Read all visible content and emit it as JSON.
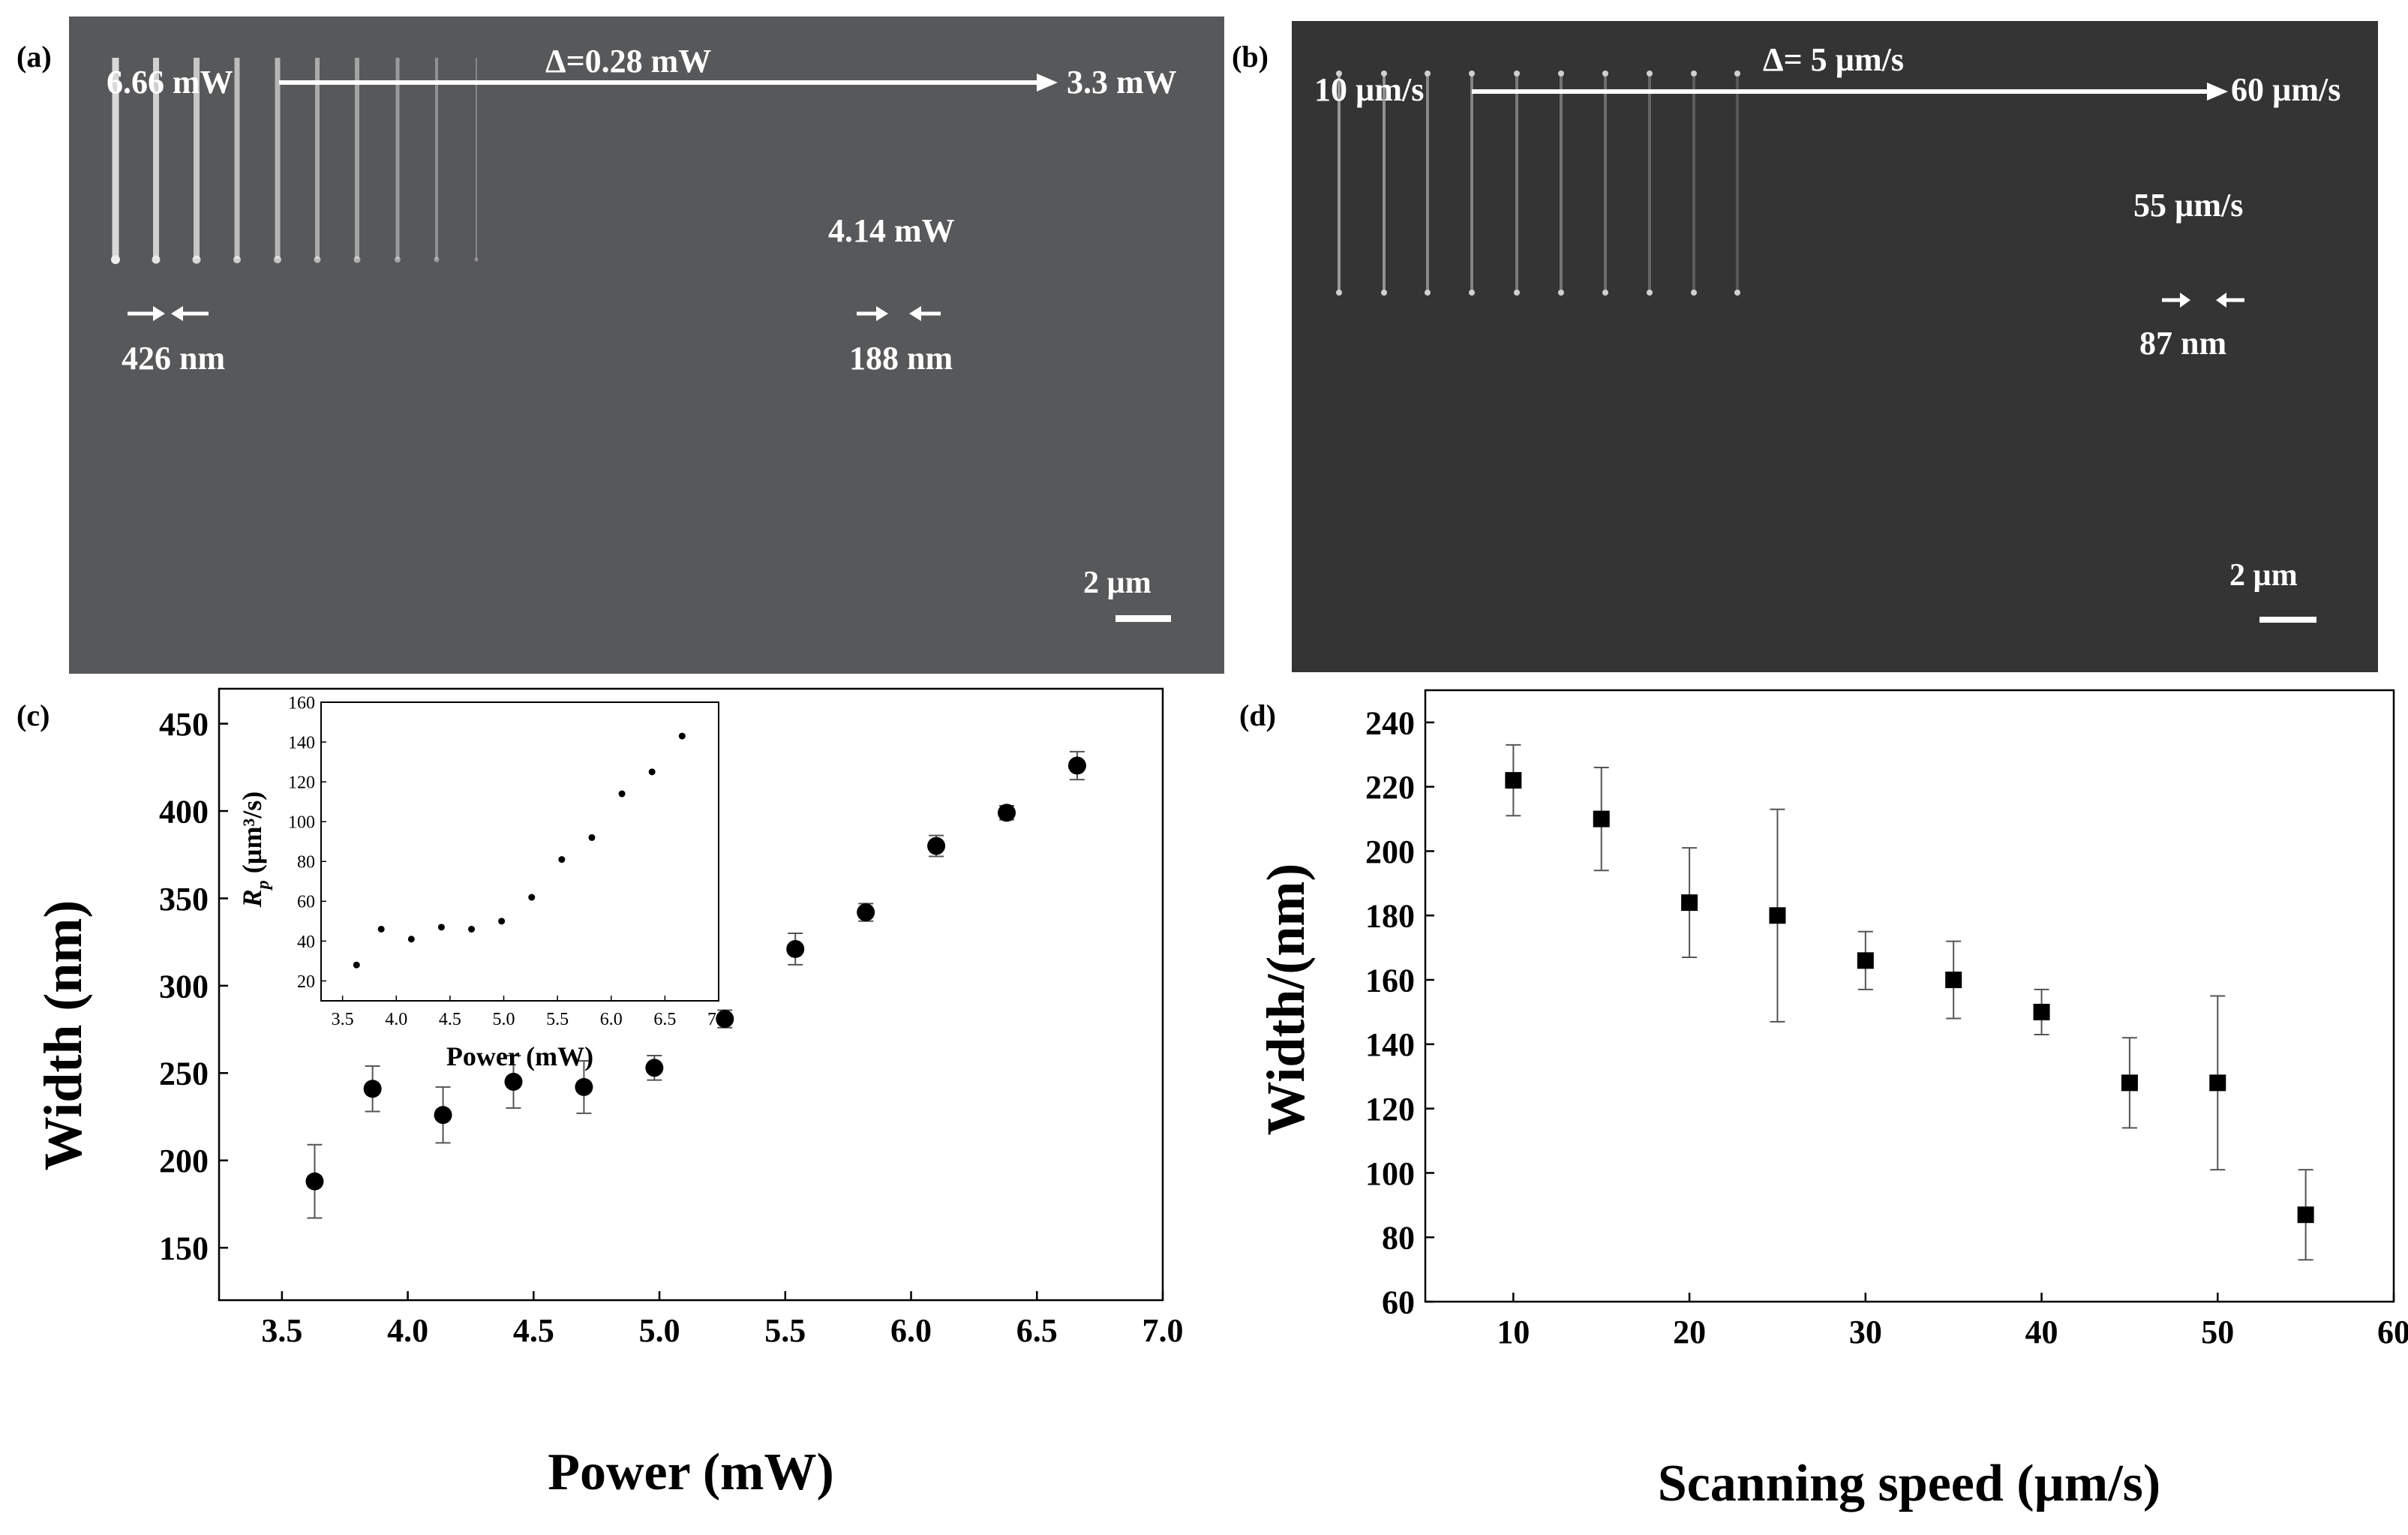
{
  "colors": {
    "sem_a_bg": "#57585a",
    "sem_b_bg": "#343434",
    "line_a": "#d9d9d9",
    "line_b": "#a9a9a9",
    "marker": "#000000",
    "errorbar": "#555555"
  },
  "panel_a": {
    "label": "(a)",
    "left_power": "6.66 mW",
    "delta": "Δ=0.28 mW",
    "right_power": "3.3 mW",
    "mid_annotation": "4.14 mW",
    "width_left": "426 nm",
    "width_right": "188 nm",
    "scale": "2 µm"
  },
  "panel_b": {
    "label": "(b)",
    "left_speed": "10 µm/s",
    "delta": "Δ= 5 µm/s",
    "right_speed": "60 µm/s",
    "mid_annotation": "55 µm/s",
    "width_right": "87 nm",
    "scale": "2 µm"
  },
  "panel_c": {
    "label": "(c)"
  },
  "panel_d": {
    "label": "(d)"
  },
  "chart_data": [
    {
      "id": "c-main",
      "type": "scatter",
      "title": "",
      "xlabel": "Power (mW)",
      "ylabel": "Width (nm)",
      "xlim": [
        3.25,
        7.0
      ],
      "ylim": [
        120,
        470
      ],
      "xticks": [
        3.5,
        4.0,
        4.5,
        5.0,
        5.5,
        6.0,
        6.5,
        7.0
      ],
      "xtick_labels": [
        "3.5",
        "4.0",
        "4.5",
        "5.0",
        "5.5",
        "6.0",
        "6.5",
        "7.0"
      ],
      "yticks": [
        150,
        200,
        250,
        300,
        350,
        400,
        450
      ],
      "ytick_labels": [
        "150",
        "200",
        "250",
        "300",
        "350",
        "400",
        "450"
      ],
      "x": [
        3.63,
        3.86,
        4.14,
        4.42,
        4.7,
        4.98,
        5.26,
        5.54,
        5.82,
        6.1,
        6.38,
        6.66
      ],
      "y": [
        188,
        241,
        226,
        245,
        242,
        253,
        281,
        321,
        342,
        380,
        399,
        426
      ],
      "err": [
        21,
        13,
        16,
        15,
        15,
        7,
        5,
        9,
        5,
        6,
        4,
        8
      ]
    },
    {
      "id": "c-inset",
      "type": "scatter",
      "xlabel": "Power (mW)",
      "ylabel": "R",
      "ylabel_sub": "p",
      "ylabel_unit": " (µm³/s)",
      "xlim": [
        3.3,
        7.0
      ],
      "ylim": [
        10,
        160
      ],
      "xticks": [
        3.5,
        4.0,
        4.5,
        5.0,
        5.5,
        6.0,
        6.5,
        7.0
      ],
      "xtick_labels": [
        "3.5",
        "4.0",
        "4.5",
        "5.0",
        "5.5",
        "6.0",
        "6.5",
        "7.0"
      ],
      "yticks": [
        20,
        40,
        60,
        80,
        100,
        120,
        140,
        160
      ],
      "ytick_labels": [
        "20",
        "40",
        "60",
        "80",
        "100",
        "120",
        "140",
        "160"
      ],
      "x": [
        3.63,
        3.86,
        4.14,
        4.42,
        4.7,
        4.98,
        5.26,
        5.54,
        5.82,
        6.1,
        6.38,
        6.66
      ],
      "y": [
        28,
        46,
        41,
        47,
        46,
        50,
        62,
        81,
        92,
        114,
        125,
        143
      ]
    },
    {
      "id": "d-main",
      "type": "scatter",
      "title": "",
      "xlabel": "Scanning speed (µm/s)",
      "ylabel": "Width/(nm)",
      "xlim": [
        5,
        60
      ],
      "ylim": [
        60,
        250
      ],
      "xticks": [
        10,
        20,
        30,
        40,
        50,
        60
      ],
      "xtick_labels": [
        "10",
        "20",
        "30",
        "40",
        "50",
        "60"
      ],
      "yticks": [
        60,
        80,
        100,
        120,
        140,
        160,
        180,
        200,
        220,
        240
      ],
      "ytick_labels": [
        "60",
        "80",
        "100",
        "120",
        "140",
        "160",
        "180",
        "200",
        "220",
        "240"
      ],
      "x": [
        10,
        15,
        20,
        25,
        30,
        35,
        40,
        45,
        50,
        55
      ],
      "y": [
        222,
        210,
        184,
        180,
        166,
        160,
        150,
        128,
        128,
        87
      ],
      "err": [
        11,
        16,
        17,
        33,
        9,
        12,
        7,
        14,
        27,
        14
      ]
    }
  ]
}
